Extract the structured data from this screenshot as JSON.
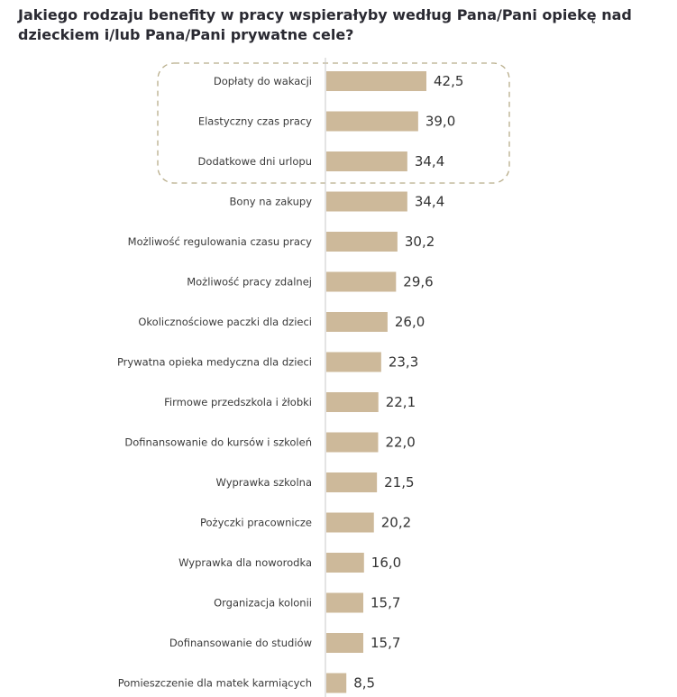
{
  "chart_data": {
    "type": "bar",
    "orientation": "horizontal",
    "title": "Jakiego rodzaju benefity w pracy wspierałyby według Pana/Pani opiekę nad dzieckiem i/lub Pana/Pani prywatne cele?",
    "categories": [
      "Dopłaty do wakacji",
      "Elastyczny czas pracy",
      "Dodatkowe dni urlopu",
      "Bony na zakupy",
      "Możliwość regulowania czasu pracy",
      "Możliwość pracy zdalnej",
      "Okolicznościowe paczki dla dzieci",
      "Prywatna opieka medyczna dla dzieci",
      "Firmowe przedszkola i żłobki",
      "Dofinansowanie do kursów i szkoleń",
      "Wyprawka szkolna",
      "Pożyczki pracownicze",
      "Wyprawka dla noworodka",
      "Organizacja kolonii",
      "Dofinansowanie do studiów",
      "Pomieszczenie dla matek karmiących"
    ],
    "values": [
      42.5,
      39.0,
      34.4,
      34.4,
      30.2,
      29.6,
      26.0,
      23.3,
      22.1,
      22.0,
      21.5,
      20.2,
      16.0,
      15.7,
      15.7,
      8.5
    ],
    "value_labels": [
      "42,5",
      "39,0",
      "34,4",
      "34,4",
      "30,2",
      "29,6",
      "26,0",
      "23,3",
      "22,1",
      "22,0",
      "21,5",
      "20,2",
      "16,0",
      "15,7",
      "15,7",
      "8,5"
    ],
    "xlim": [
      0,
      42.5
    ],
    "grid": false,
    "highlighted_categories": [
      0,
      1,
      2
    ],
    "colors": {
      "bar": "#cdb99a",
      "axis": "#c9c9c9",
      "highlight_border": "#b8ad8a",
      "title": "#2a2a32"
    }
  }
}
